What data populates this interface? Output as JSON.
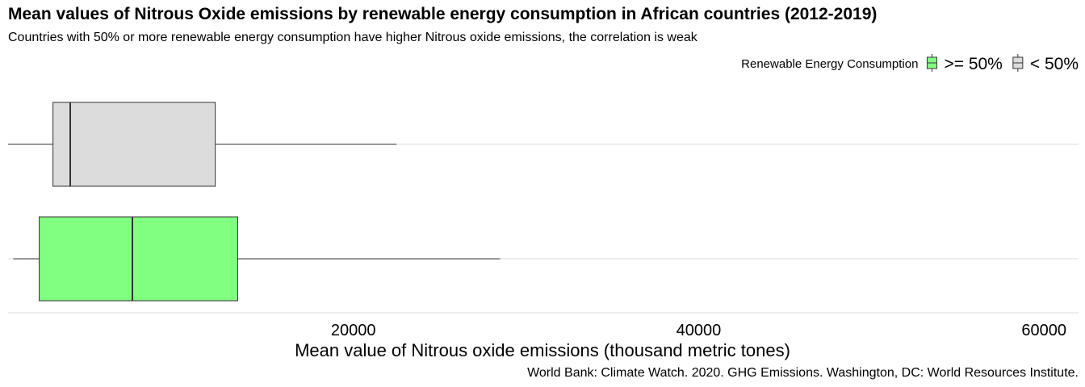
{
  "chart_data": {
    "type": "boxplot",
    "orientation": "horizontal",
    "title": "Mean values of Nitrous Oxide emissions by renewable energy consumption in African countries (2012-2019)",
    "subtitle": "Countries with 50% or more renewable energy consumption have higher Nitrous oxide emissions, the correlation is weak",
    "caption": "World Bank: Climate Watch. 2020. GHG Emissions. Washington, DC: World Resources Institute.",
    "xlabel": "Mean value of Nitrous oxide emissions (thousand metric tones)",
    "ylabel": "",
    "xlim": [
      0,
      62000
    ],
    "x_ticks": [
      20000,
      40000,
      60000
    ],
    "grid": "horizontal major lines only",
    "legend": {
      "title": "Renewable Energy Consumption",
      "position": "top-right",
      "entries": [
        {
          "label": ">= 50%",
          "color": "#80ff80"
        },
        {
          "label": "< 50%",
          "color": "#dcdcdc"
        }
      ]
    },
    "series": [
      {
        "name": "< 50%",
        "color": "#dcdcdc",
        "whisker_low": 0,
        "q1": 2600,
        "median": 3600,
        "q3": 12000,
        "whisker_high": 22500
      },
      {
        "name": ">= 50%",
        "color": "#80ff80",
        "whisker_low": 300,
        "q1": 1800,
        "median": 7200,
        "q3": 13300,
        "whisker_high": 28500
      }
    ]
  }
}
